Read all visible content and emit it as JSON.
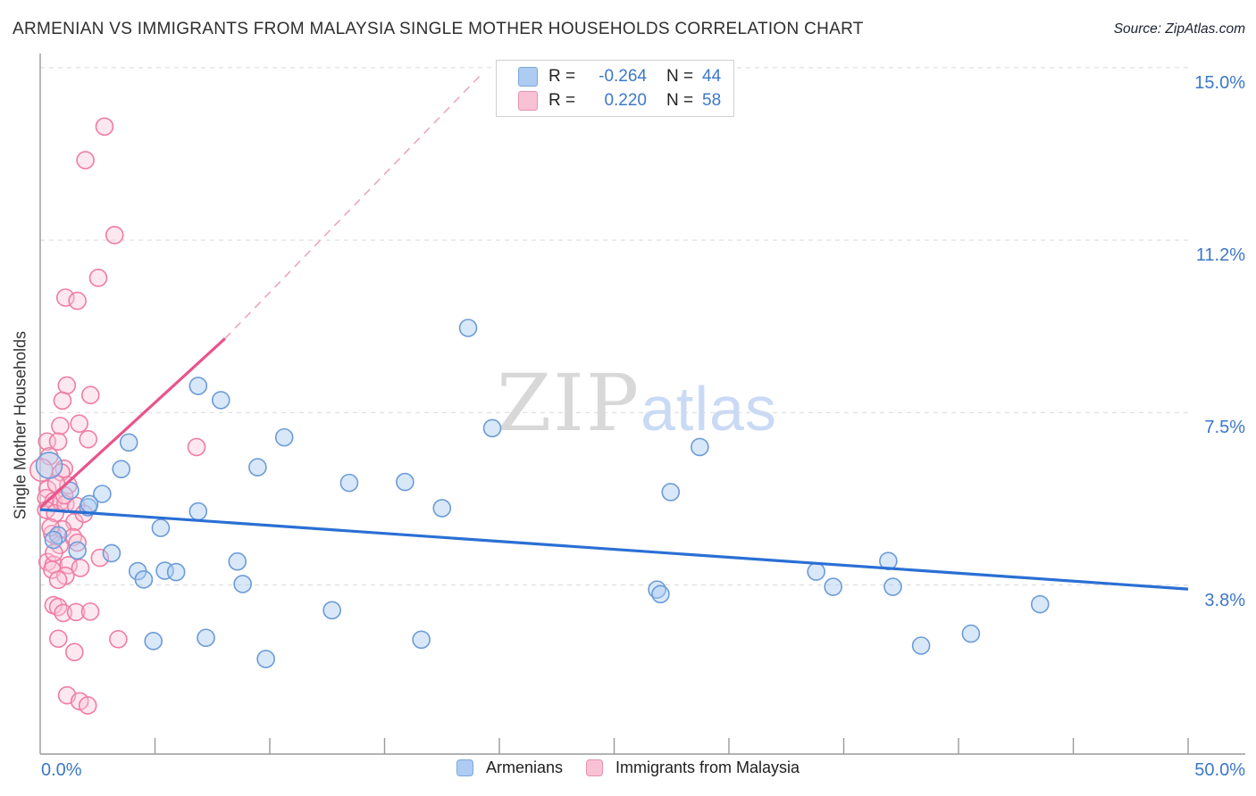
{
  "title": "ARMENIAN VS IMMIGRANTS FROM MALAYSIA SINGLE MOTHER HOUSEHOLDS CORRELATION CHART",
  "source": "Source: ZipAtlas.com",
  "y_axis_title": "Single Mother Households",
  "watermark": {
    "part1": "ZIP",
    "part2": "atlas"
  },
  "legend_box": {
    "rows": [
      {
        "swatch": "blue-swatch",
        "r_label": "R =",
        "r_value": "-0.264",
        "n_label": "N =",
        "n_value": "44"
      },
      {
        "swatch": "pink-swatch",
        "r_label": "R =",
        "r_value": "0.220",
        "n_label": "N =",
        "n_value": "58"
      }
    ]
  },
  "bottom_legend": [
    {
      "label": "Armenians",
      "color": "#aecbf1"
    },
    {
      "label": "Immigrants from Malaysia",
      "color": "#f9c2d4"
    }
  ],
  "axes": {
    "x_min_label": "0.0%",
    "x_max_label": "50.0%",
    "x_range": [
      0,
      50
    ],
    "y_range": [
      0,
      15.6
    ],
    "x_minor_tick_step": 5,
    "y_ticks": [
      {
        "value": 15.0,
        "label": "15.0%"
      },
      {
        "value": 11.25,
        "label": "11.2%"
      },
      {
        "value": 7.5,
        "label": "7.5%"
      },
      {
        "value": 3.75,
        "label": "3.8%"
      }
    ],
    "grid": "dashed-horizontal"
  },
  "colors": {
    "blue_fill": "rgba(170,203,242,0.45)",
    "blue_stroke": "#6b9bd8",
    "pink_fill": "rgba(250,198,214,0.40)",
    "pink_stroke": "#f07ca4",
    "blue_trend": "#2a6fd4",
    "pink_trend": "#e8548c",
    "pink_trend_dashed": "#eda5bd",
    "gridline": "#d9d9d9",
    "axis": "#9a9a9a",
    "tick_label": "#3c78c8"
  },
  "chart_data": {
    "type": "scatter",
    "x_unit": "%",
    "y_unit": "%",
    "xlabel": "",
    "ylabel": "Single Mother Households",
    "series": [
      {
        "name": "Immigrants from Malaysia",
        "R": 0.22,
        "N": 58,
        "points": [
          [
            2.8,
            13.72
          ],
          [
            1.97,
            12.99
          ],
          [
            3.24,
            11.36
          ],
          [
            2.53,
            10.43
          ],
          [
            1.1,
            10.0
          ],
          [
            1.62,
            9.93
          ],
          [
            1.16,
            8.09
          ],
          [
            0.97,
            7.76
          ],
          [
            2.19,
            7.88
          ],
          [
            0.87,
            7.21
          ],
          [
            1.7,
            7.26
          ],
          [
            2.09,
            6.92
          ],
          [
            0.3,
            6.87
          ],
          [
            0.78,
            6.87
          ],
          [
            1.04,
            6.28
          ],
          [
            0.91,
            6.2
          ],
          [
            6.81,
            6.75
          ],
          [
            0.32,
            5.83
          ],
          [
            0.26,
            5.64
          ],
          [
            0.58,
            5.57
          ],
          [
            0.91,
            5.57
          ],
          [
            1.22,
            5.92
          ],
          [
            0.26,
            5.38
          ],
          [
            0.65,
            5.31
          ],
          [
            1.1,
            5.51
          ],
          [
            1.56,
            5.47
          ],
          [
            1.49,
            5.12
          ],
          [
            0.52,
            4.86
          ],
          [
            0.97,
            4.96
          ],
          [
            1.43,
            4.79
          ],
          [
            1.62,
            4.67
          ],
          [
            0.32,
            4.25
          ],
          [
            0.58,
            4.19
          ],
          [
            0.52,
            4.08
          ],
          [
            1.23,
            4.18
          ],
          [
            2.6,
            4.34
          ],
          [
            1.75,
            4.12
          ],
          [
            1.1,
            3.95
          ],
          [
            0.78,
            3.86
          ],
          [
            0.4,
            6.55
          ],
          [
            0.7,
            5.95
          ],
          [
            1.05,
            5.7
          ],
          [
            0.45,
            5.0
          ],
          [
            0.85,
            4.62
          ],
          [
            1.9,
            5.3
          ],
          [
            0.6,
            4.45
          ],
          [
            0.58,
            3.31
          ],
          [
            0.78,
            3.27
          ],
          [
            1.0,
            3.14
          ],
          [
            1.56,
            3.16
          ],
          [
            2.18,
            3.17
          ],
          [
            0.79,
            2.58
          ],
          [
            1.49,
            2.29
          ],
          [
            3.4,
            2.57
          ],
          [
            1.17,
            1.35
          ],
          [
            1.72,
            1.22
          ],
          [
            2.07,
            1.13
          ],
          [
            0.05,
            6.25
          ]
        ],
        "big_points": [
          [
            0.05,
            6.25
          ]
        ],
        "trend_solid": {
          "x1": 0,
          "y1": 5.43,
          "x2": 8.05,
          "y2": 9.11
        },
        "trend_dashed": {
          "x1": 8.05,
          "y1": 9.11,
          "x2": 19.3,
          "y2": 14.9
        }
      },
      {
        "name": "Armenians",
        "R": -0.264,
        "N": 44,
        "points": [
          [
            18.64,
            9.34
          ],
          [
            6.88,
            8.08
          ],
          [
            7.87,
            7.77
          ],
          [
            10.63,
            6.96
          ],
          [
            19.69,
            7.16
          ],
          [
            3.86,
            6.85
          ],
          [
            3.53,
            6.27
          ],
          [
            9.47,
            6.31
          ],
          [
            0.39,
            6.35
          ],
          [
            13.46,
            5.97
          ],
          [
            15.89,
            5.99
          ],
          [
            17.5,
            5.42
          ],
          [
            28.73,
            6.75
          ],
          [
            27.46,
            5.77
          ],
          [
            2.7,
            5.73
          ],
          [
            2.09,
            5.44
          ],
          [
            6.88,
            5.35
          ],
          [
            1.3,
            5.8
          ],
          [
            2.14,
            5.51
          ],
          [
            5.25,
            4.99
          ],
          [
            0.78,
            4.83
          ],
          [
            0.58,
            4.73
          ],
          [
            1.62,
            4.5
          ],
          [
            3.11,
            4.44
          ],
          [
            4.25,
            4.05
          ],
          [
            4.51,
            3.87
          ],
          [
            5.43,
            4.06
          ],
          [
            5.92,
            4.03
          ],
          [
            8.59,
            4.26
          ],
          [
            8.82,
            3.77
          ],
          [
            12.71,
            3.2
          ],
          [
            4.93,
            2.53
          ],
          [
            7.22,
            2.6
          ],
          [
            9.83,
            2.14
          ],
          [
            16.6,
            2.56
          ],
          [
            33.8,
            4.04
          ],
          [
            34.54,
            3.71
          ],
          [
            36.94,
            4.27
          ],
          [
            37.14,
            3.71
          ],
          [
            26.87,
            3.65
          ],
          [
            27.02,
            3.55
          ],
          [
            43.55,
            3.33
          ],
          [
            40.54,
            2.69
          ],
          [
            38.37,
            2.43
          ]
        ],
        "big_points": [
          [
            0.39,
            6.35
          ]
        ],
        "trend_solid": {
          "x1": 0,
          "y1": 5.39,
          "x2": 50,
          "y2": 3.66
        }
      }
    ]
  }
}
